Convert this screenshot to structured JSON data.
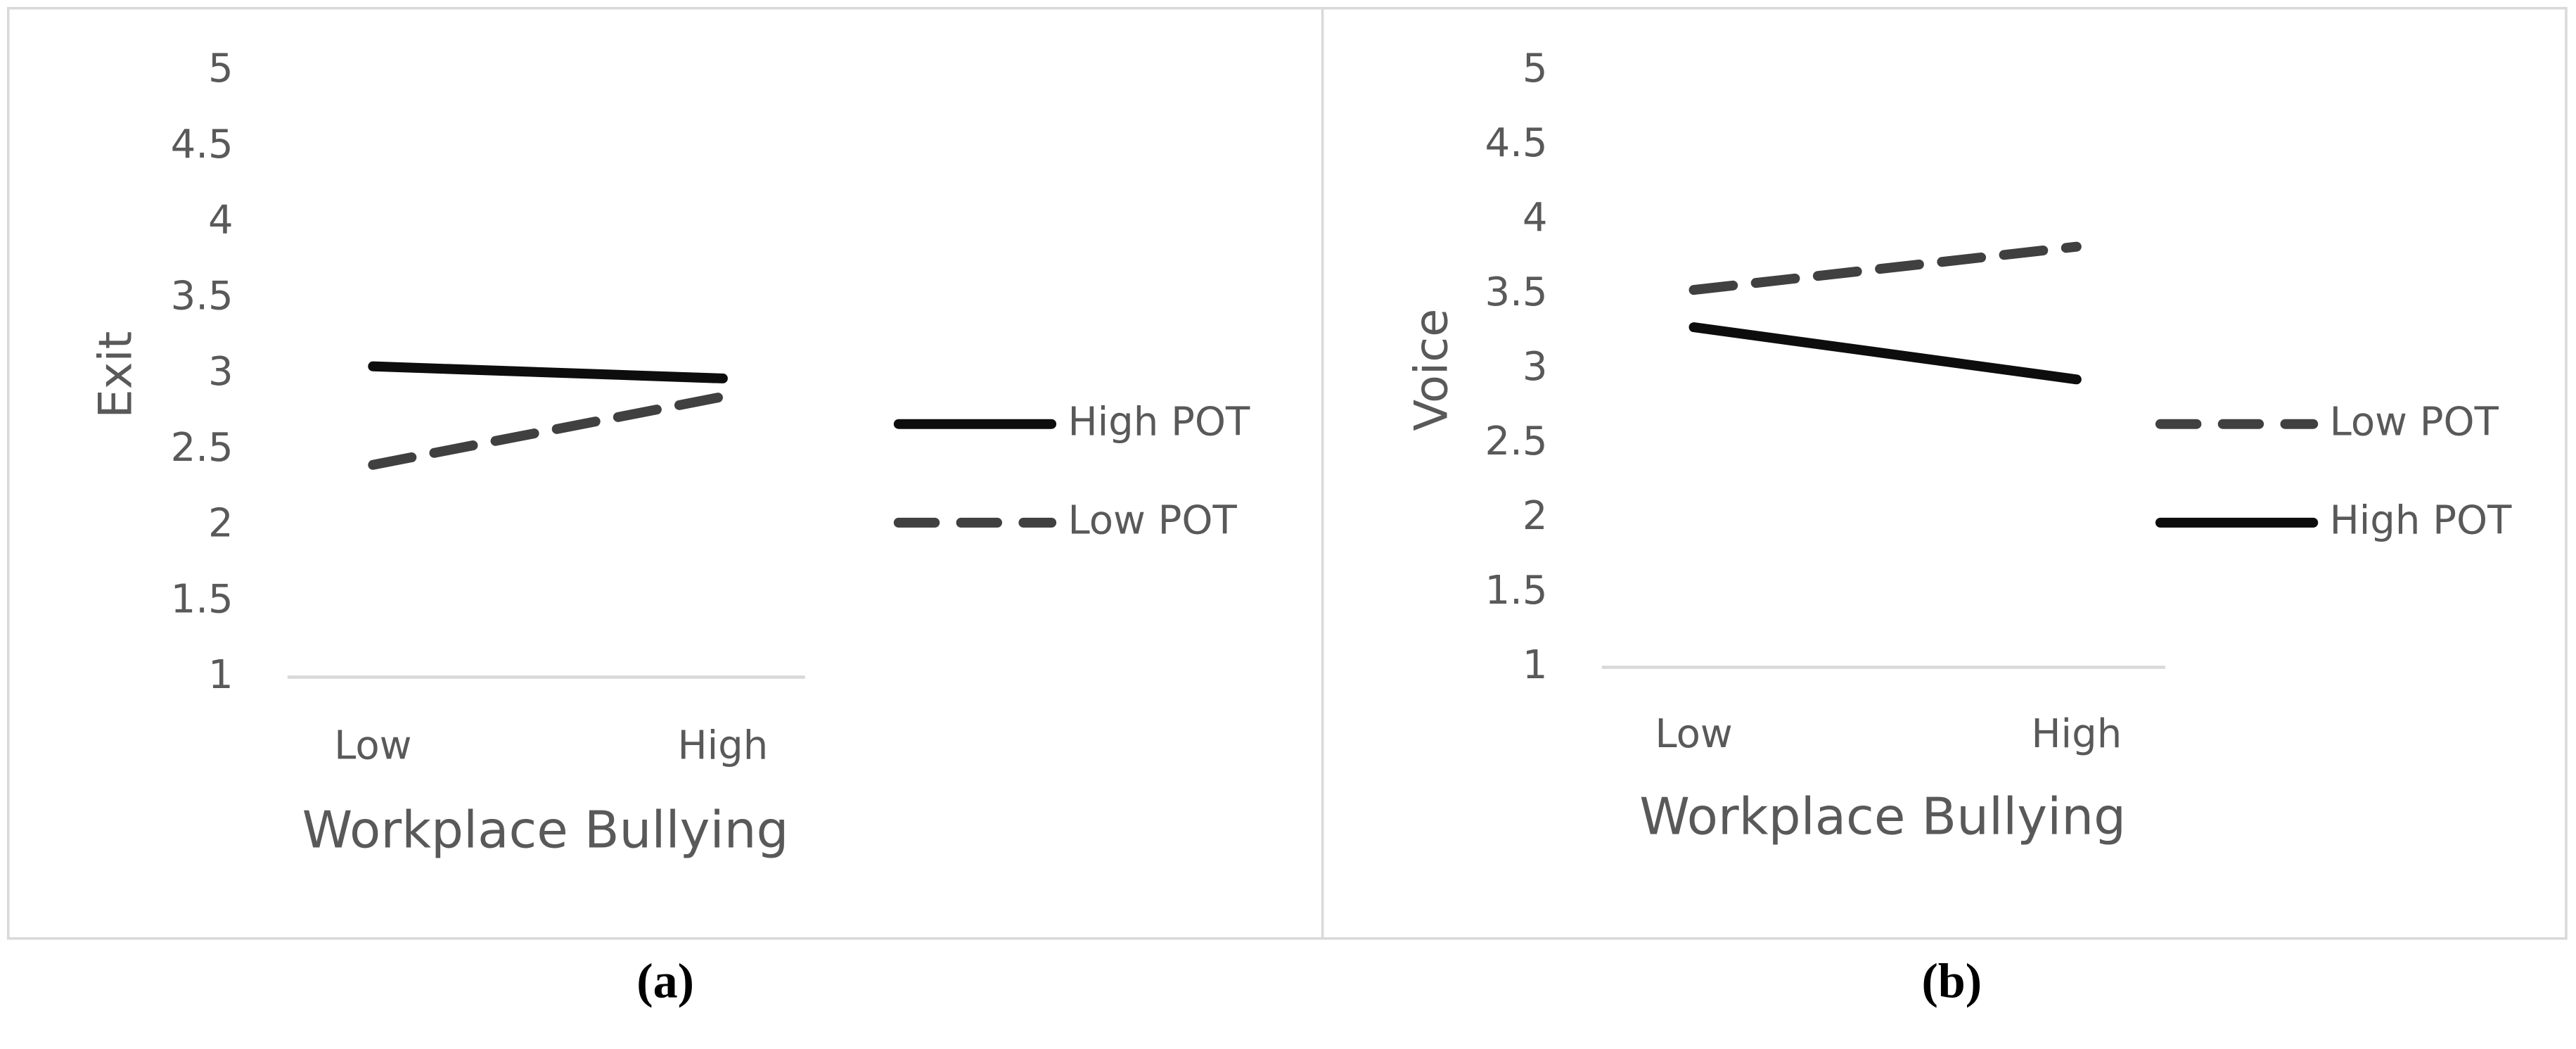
{
  "chart_data": [
    {
      "type": "line",
      "caption": "(a)",
      "y_label": "Exit",
      "x_label": "Workplace Bullying",
      "categories": [
        "Low",
        "High"
      ],
      "series": [
        {
          "name": "High POT",
          "color": "#0d0d0d",
          "line_style": "solid",
          "values": [
            3.05,
            2.97
          ]
        },
        {
          "name": "Low POT",
          "color": "#404040",
          "line_style": "dashed",
          "values": [
            2.4,
            2.85
          ]
        }
      ],
      "ylim": [
        1,
        5
      ],
      "yticks": [
        1,
        1.5,
        2,
        2.5,
        3,
        3.5,
        4,
        4.5,
        5
      ],
      "grid": false,
      "legend": "right"
    },
    {
      "type": "line",
      "caption": "(b)",
      "y_label": "Voice",
      "x_label": "Workplace Bullying",
      "categories": [
        "Low",
        "High"
      ],
      "series": [
        {
          "name": "Low POT",
          "color": "#404040",
          "line_style": "dashed",
          "values": [
            3.53,
            3.82
          ]
        },
        {
          "name": "High POT",
          "color": "#0d0d0d",
          "line_style": "solid",
          "values": [
            3.28,
            2.93
          ]
        }
      ],
      "ylim": [
        1,
        5
      ],
      "yticks": [
        1,
        1.5,
        2,
        2.5,
        3,
        3.5,
        4,
        4.5,
        5
      ],
      "grid": false,
      "legend": "right"
    }
  ]
}
